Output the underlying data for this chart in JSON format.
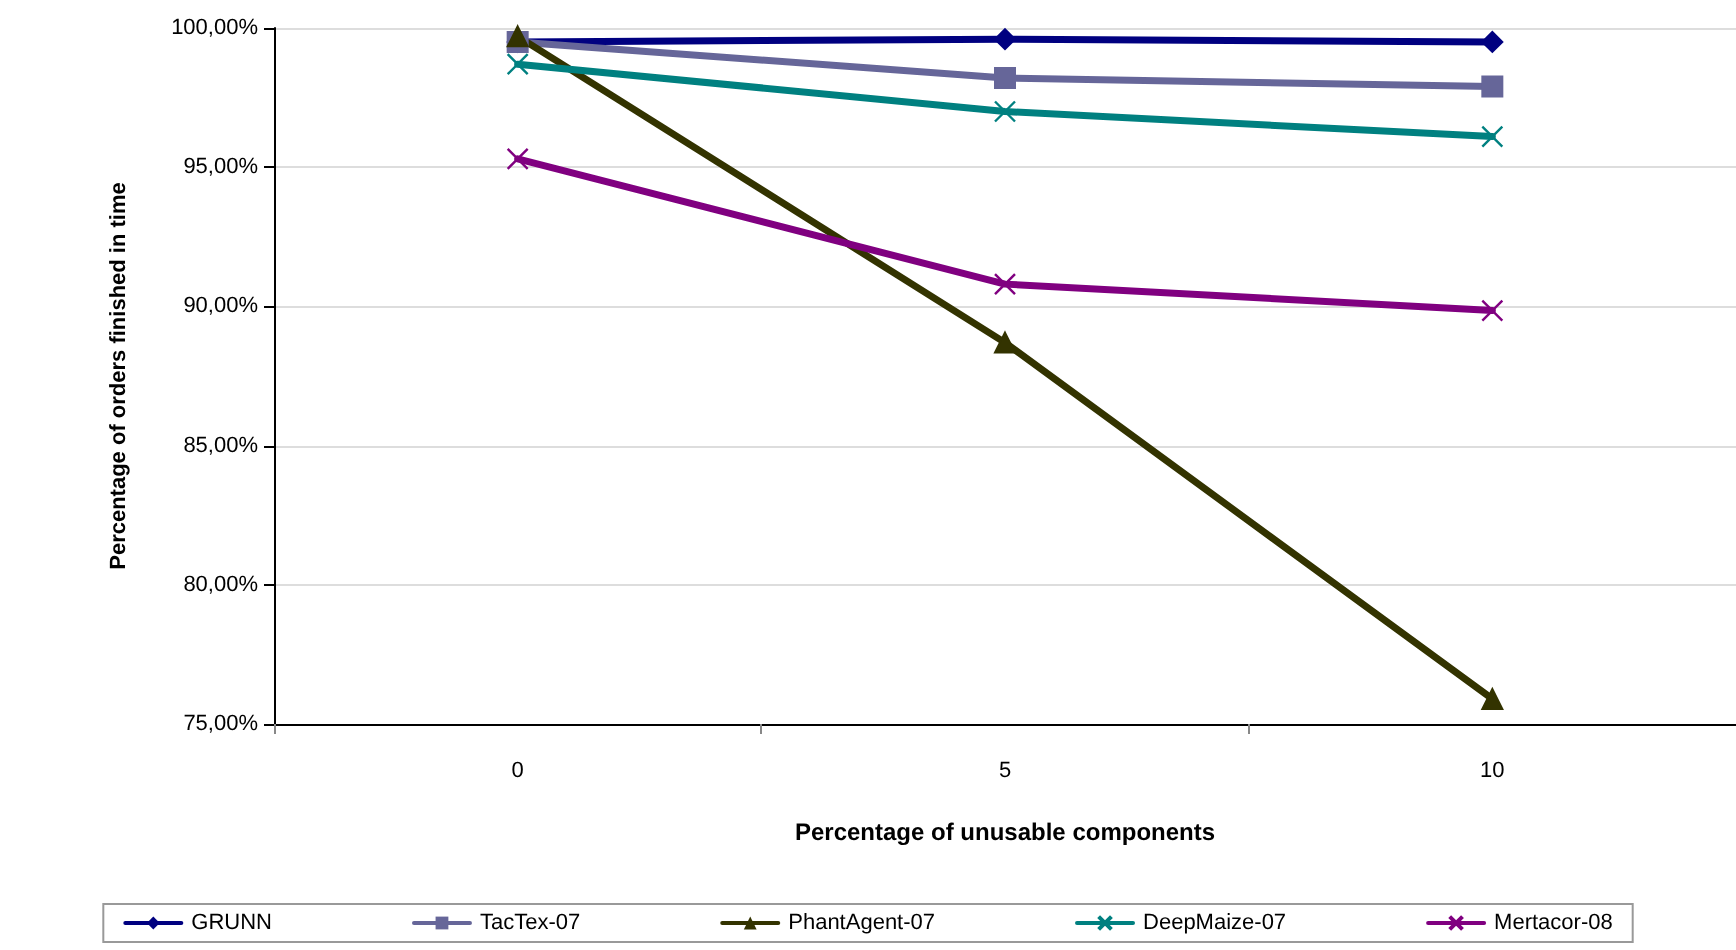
{
  "chart_data": {
    "type": "line",
    "xlabel": "Percentage of unusable components",
    "ylabel": "Percentage of orders finished in time",
    "categories": [
      "0",
      "5",
      "10"
    ],
    "series": [
      {
        "name": "GRUNN",
        "color": "#000080",
        "marker": "diamond",
        "values": [
          99.5,
          99.6,
          99.5
        ]
      },
      {
        "name": "TacTex-07",
        "color": "#666699",
        "marker": "square",
        "values": [
          99.5,
          98.2,
          97.9
        ]
      },
      {
        "name": "PhantAgent-07",
        "color": "#333300",
        "marker": "triangle",
        "values": [
          99.7,
          88.7,
          75.9
        ]
      },
      {
        "name": "DeepMaize-07",
        "color": "#008080",
        "marker": "cross",
        "values": [
          98.7,
          97.0,
          96.1
        ]
      },
      {
        "name": "Mertacor-08",
        "color": "#800080",
        "marker": "cross",
        "values": [
          95.3,
          90.8,
          89.85
        ]
      }
    ],
    "ylim": [
      75,
      100
    ],
    "yticks": [
      {
        "value": 75,
        "label": "75,00%"
      },
      {
        "value": 80,
        "label": "80,00%"
      },
      {
        "value": 85,
        "label": "85,00%"
      },
      {
        "value": 90,
        "label": "90,00%"
      },
      {
        "value": 95,
        "label": "95,00%"
      },
      {
        "value": 100,
        "label": "100,00%"
      }
    ],
    "grid": "y",
    "legend": "bottom",
    "line_style": "solid"
  }
}
